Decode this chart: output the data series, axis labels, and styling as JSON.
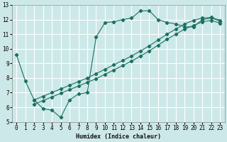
{
  "xlabel": "Humidex (Indice chaleur)",
  "ylabel": "",
  "bg_color": "#cde8e8",
  "grid_color": "#b0d0d0",
  "line_color": "#1a7060",
  "xlim": [
    -0.5,
    23.5
  ],
  "ylim": [
    5,
    13
  ],
  "xticks": [
    0,
    1,
    2,
    3,
    4,
    5,
    6,
    7,
    8,
    9,
    10,
    11,
    12,
    13,
    14,
    15,
    16,
    17,
    18,
    19,
    20,
    21,
    22,
    23
  ],
  "yticks": [
    5,
    6,
    7,
    8,
    9,
    10,
    11,
    12,
    13
  ],
  "main_x": [
    0,
    1,
    2,
    3,
    4,
    5,
    6,
    7,
    8,
    9,
    10,
    11,
    12,
    13,
    14,
    15,
    16,
    17,
    18,
    19,
    20,
    21,
    22,
    23
  ],
  "main_y": [
    9.6,
    7.8,
    6.5,
    5.9,
    5.8,
    5.3,
    6.5,
    6.9,
    7.0,
    10.8,
    11.8,
    11.85,
    12.0,
    12.1,
    12.6,
    12.6,
    12.0,
    11.8,
    11.7,
    11.5,
    11.5,
    12.0,
    12.1,
    11.9
  ],
  "diag1_x": [
    2,
    3,
    4,
    5,
    6,
    7,
    8,
    9,
    10,
    11,
    12,
    13,
    14,
    15,
    16,
    17,
    18,
    19,
    20,
    21,
    22,
    23
  ],
  "diag1_y": [
    6.5,
    6.75,
    7.0,
    7.25,
    7.5,
    7.75,
    8.0,
    8.3,
    8.6,
    8.9,
    9.2,
    9.5,
    9.85,
    10.2,
    10.6,
    11.0,
    11.35,
    11.7,
    11.95,
    12.1,
    12.15,
    11.95
  ],
  "diag2_x": [
    2,
    3,
    4,
    5,
    6,
    7,
    8,
    9,
    10,
    11,
    12,
    13,
    14,
    15,
    16,
    17,
    18,
    19,
    20,
    21,
    22,
    23
  ],
  "diag2_y": [
    6.2,
    6.45,
    6.7,
    6.95,
    7.2,
    7.45,
    7.7,
    7.95,
    8.25,
    8.55,
    8.85,
    9.15,
    9.5,
    9.85,
    10.25,
    10.65,
    11.0,
    11.35,
    11.6,
    11.85,
    11.95,
    11.75
  ]
}
